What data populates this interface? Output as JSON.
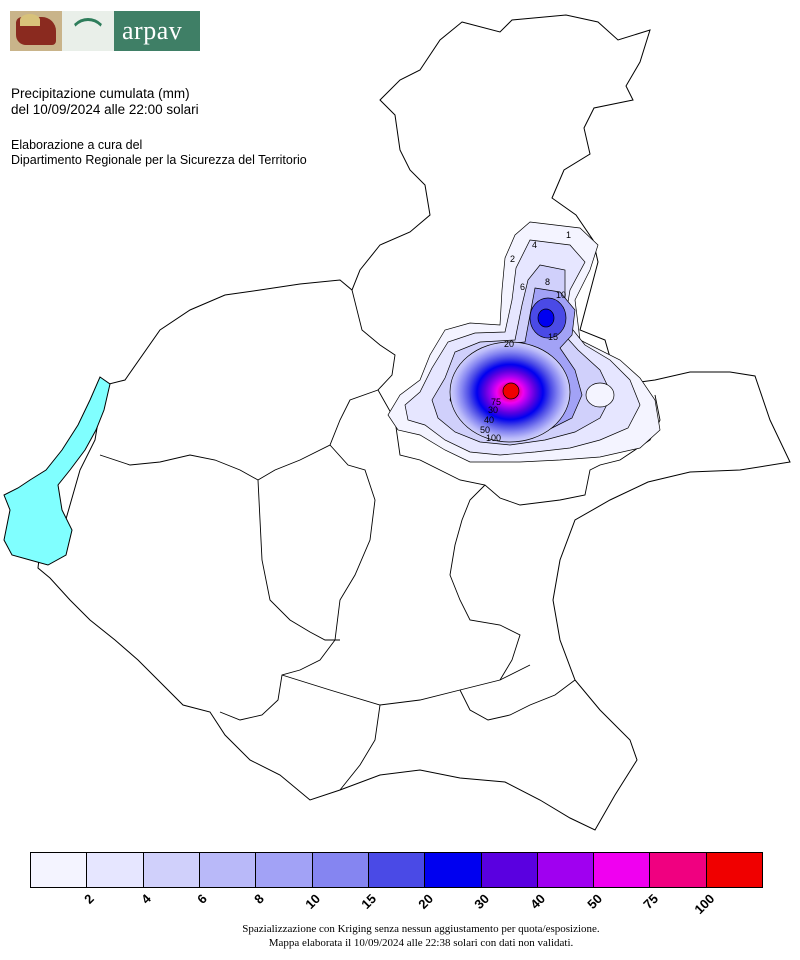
{
  "header": {
    "logo_text": "arpav",
    "title_line1": "Precipitazione cumulata (mm)",
    "title_line2": "del 10/09/2024 alle 22:00 solari",
    "credit_line1": "Elaborazione a cura del",
    "credit_line2": "Dipartimento Regionale per la Sicurezza del Territorio"
  },
  "map": {
    "lake_color": "#80ffff",
    "contour_labels": [
      "1",
      "2",
      "4",
      "6",
      "8",
      "10",
      "15",
      "20",
      "30",
      "40",
      "50",
      "75",
      "100"
    ]
  },
  "legend": {
    "colors": [
      "#f4f4ff",
      "#e6e6ff",
      "#d0d0fb",
      "#b9b9f9",
      "#a2a2f6",
      "#8585f1",
      "#4a4ae6",
      "#0000f0",
      "#5a00e0",
      "#a000f0",
      "#f000f0",
      "#f00080",
      "#f00000"
    ],
    "ticks": [
      "2",
      "4",
      "6",
      "8",
      "10",
      "15",
      "20",
      "30",
      "40",
      "50",
      "75",
      "100"
    ]
  },
  "footer": {
    "line1": "Spazializzazione con Kriging senza nessun aggiustamento per quota/esposizione.",
    "line2": "Mappa elaborata il 10/09/2024 alle 22:38 solari con dati non validati."
  }
}
